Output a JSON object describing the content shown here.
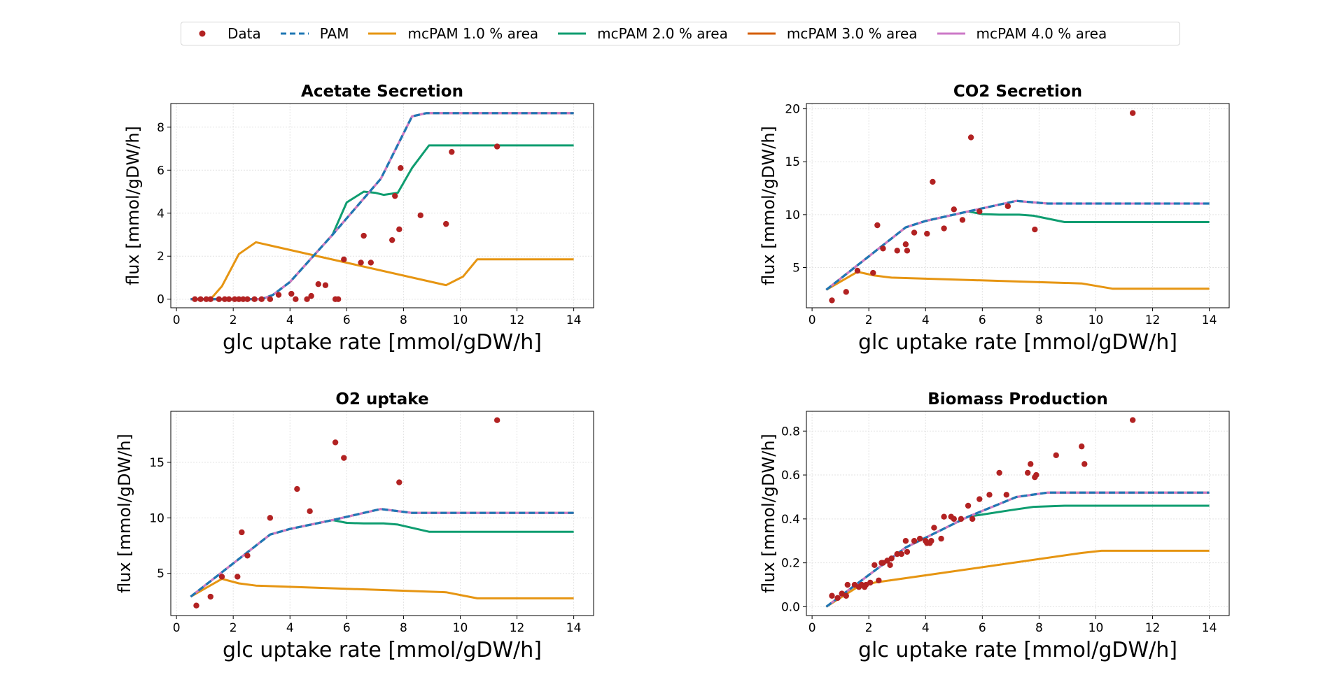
{
  "legend": [
    {
      "label": "Data",
      "kind": "marker",
      "color": "#b22222"
    },
    {
      "label": "PAM",
      "kind": "dashed",
      "color": "#1f77b4"
    },
    {
      "label": "mcPAM 1.0 % area",
      "kind": "line",
      "color": "#e69512"
    },
    {
      "label": "mcPAM 2.0 % area",
      "kind": "line",
      "color": "#0f9d70"
    },
    {
      "label": "mcPAM 3.0 % area",
      "kind": "line",
      "color": "#d55e00"
    },
    {
      "label": "mcPAM 4.0 % area",
      "kind": "line",
      "color": "#cc79c7"
    }
  ],
  "chart_data": [
    {
      "type": "line",
      "title": "Acetate Secretion",
      "xlabel": "glc uptake rate [mmol/gDW/h]",
      "ylabel": "flux [mmol/gDW/h]",
      "xlim": [
        -0.2,
        14.7
      ],
      "ylim": [
        -0.4,
        9.1
      ],
      "xticks": [
        0,
        2,
        4,
        6,
        8,
        10,
        12,
        14
      ],
      "yticks": [
        0,
        2,
        4,
        6,
        8
      ],
      "scatter": {
        "name": "Data",
        "x": [
          0.65,
          0.85,
          1.05,
          1.2,
          1.5,
          1.7,
          1.85,
          2.05,
          2.2,
          2.35,
          2.5,
          2.75,
          3.0,
          3.3,
          3.6,
          4.05,
          4.2,
          4.6,
          4.75,
          5.0,
          5.25,
          5.6,
          5.7,
          5.9,
          6.5,
          6.6,
          6.85,
          7.6,
          7.7,
          7.85,
          7.9,
          8.6,
          9.5,
          9.7,
          11.3
        ],
        "y": [
          0,
          0,
          0,
          0,
          0,
          0,
          0,
          0,
          0,
          0,
          0,
          0,
          0,
          0,
          0.2,
          0.25,
          0,
          0,
          0.15,
          0.7,
          0.65,
          0,
          0,
          1.85,
          1.7,
          2.95,
          1.7,
          2.75,
          4.8,
          3.25,
          6.1,
          3.9,
          3.5,
          6.85,
          7.1
        ]
      },
      "series": [
        {
          "name": "PAM",
          "x": [
            0.5,
            3.0,
            3.4,
            4.0,
            5.5,
            7.2,
            8.3,
            8.8,
            14.0
          ],
          "y": [
            0,
            0,
            0.2,
            0.8,
            3.0,
            5.6,
            8.5,
            8.65,
            8.65
          ]
        },
        {
          "name": "mcPAM 1.0 % area",
          "x": [
            0.5,
            1.2,
            1.6,
            2.2,
            2.8,
            9.5,
            10.1,
            10.6,
            14.0
          ],
          "y": [
            0,
            0,
            0.6,
            2.1,
            2.65,
            0.65,
            1.05,
            1.85,
            1.85
          ]
        },
        {
          "name": "mcPAM 2.0 % area",
          "x": [
            0.5,
            3.0,
            3.4,
            4.0,
            5.5,
            6.0,
            6.6,
            7.0,
            7.3,
            7.8,
            8.3,
            8.9,
            14.0
          ],
          "y": [
            0,
            0,
            0.2,
            0.8,
            3.0,
            4.5,
            5.0,
            4.95,
            4.85,
            4.95,
            6.1,
            7.15,
            7.15
          ]
        },
        {
          "name": "mcPAM 3.0 % area",
          "x": [
            0.5,
            3.0,
            3.4,
            4.0,
            5.5,
            7.2,
            8.3,
            8.8,
            14.0
          ],
          "y": [
            0,
            0,
            0.2,
            0.8,
            3.0,
            5.6,
            8.5,
            8.65,
            8.65
          ]
        },
        {
          "name": "mcPAM 4.0 % area",
          "x": [
            0.5,
            3.0,
            3.4,
            4.0,
            5.5,
            7.2,
            8.3,
            8.8,
            14.0
          ],
          "y": [
            0,
            0,
            0.2,
            0.8,
            3.0,
            5.6,
            8.5,
            8.65,
            8.65
          ]
        }
      ]
    },
    {
      "type": "line",
      "title": "CO2 Secretion",
      "xlabel": "glc uptake rate [mmol/gDW/h]",
      "ylabel": "flux [mmol/gDW/h]",
      "xlim": [
        -0.2,
        14.7
      ],
      "ylim": [
        1.2,
        20.5
      ],
      "xticks": [
        0,
        2,
        4,
        6,
        8,
        10,
        12,
        14
      ],
      "yticks": [
        5,
        10,
        15,
        20
      ],
      "scatter": {
        "name": "Data",
        "x": [
          0.7,
          1.2,
          1.6,
          2.15,
          2.3,
          2.5,
          3.0,
          3.3,
          3.35,
          3.6,
          4.05,
          4.25,
          4.65,
          5.0,
          5.3,
          5.6,
          5.9,
          6.9,
          7.85,
          11.3
        ],
        "y": [
          1.9,
          2.7,
          4.7,
          4.5,
          9.0,
          6.8,
          6.6,
          7.2,
          6.6,
          8.3,
          8.2,
          13.1,
          8.7,
          10.5,
          9.5,
          17.3,
          10.3,
          10.8,
          8.6,
          19.6
        ]
      },
      "series": [
        {
          "name": "PAM",
          "x": [
            0.5,
            3.3,
            4.0,
            5.5,
            7.2,
            8.3,
            14.0
          ],
          "y": [
            2.9,
            8.8,
            9.4,
            10.3,
            11.3,
            11.05,
            11.05
          ]
        },
        {
          "name": "mcPAM 1.0 % area",
          "x": [
            0.5,
            1.6,
            2.2,
            2.8,
            9.5,
            10.6,
            14.0
          ],
          "y": [
            2.9,
            4.6,
            4.25,
            4.05,
            3.5,
            3.0,
            3.0
          ]
        },
        {
          "name": "mcPAM 2.0 % area",
          "x": [
            0.5,
            3.3,
            4.0,
            5.5,
            6.0,
            6.6,
            7.3,
            7.8,
            8.9,
            14.0
          ],
          "y": [
            2.9,
            8.8,
            9.4,
            10.3,
            10.05,
            10.0,
            10.0,
            9.9,
            9.3,
            9.3
          ]
        },
        {
          "name": "mcPAM 3.0 % area",
          "x": [
            0.5,
            3.3,
            4.0,
            5.5,
            7.2,
            8.3,
            14.0
          ],
          "y": [
            2.9,
            8.8,
            9.4,
            10.3,
            11.3,
            11.05,
            11.05
          ]
        },
        {
          "name": "mcPAM 4.0 % area",
          "x": [
            0.5,
            3.3,
            4.0,
            5.5,
            7.2,
            8.3,
            14.0
          ],
          "y": [
            2.9,
            8.8,
            9.4,
            10.3,
            11.3,
            11.05,
            11.05
          ]
        }
      ]
    },
    {
      "type": "line",
      "title": "O2 uptake",
      "xlabel": "glc uptake rate [mmol/gDW/h]",
      "ylabel": "flux [mmol/gDW/h]",
      "xlim": [
        -0.2,
        14.7
      ],
      "ylim": [
        1.2,
        19.6
      ],
      "xticks": [
        0,
        2,
        4,
        6,
        8,
        10,
        12,
        14
      ],
      "yticks": [
        5,
        10,
        15
      ],
      "scatter": {
        "name": "Data",
        "x": [
          0.7,
          1.2,
          1.6,
          2.15,
          2.3,
          2.5,
          3.3,
          4.25,
          4.7,
          5.6,
          5.9,
          7.85,
          11.3
        ],
        "y": [
          2.1,
          2.9,
          4.7,
          4.7,
          8.7,
          6.6,
          10.0,
          12.6,
          10.6,
          16.8,
          15.4,
          13.2,
          18.8
        ]
      },
      "series": [
        {
          "name": "PAM",
          "x": [
            0.5,
            3.3,
            4.0,
            5.5,
            7.2,
            8.3,
            14.0
          ],
          "y": [
            2.9,
            8.5,
            9.0,
            9.8,
            10.8,
            10.45,
            10.45
          ]
        },
        {
          "name": "mcPAM 1.0 % area",
          "x": [
            0.5,
            1.6,
            2.2,
            2.8,
            9.5,
            10.6,
            14.0
          ],
          "y": [
            2.9,
            4.5,
            4.1,
            3.9,
            3.3,
            2.75,
            2.75
          ]
        },
        {
          "name": "mcPAM 2.0 % area",
          "x": [
            0.5,
            3.3,
            4.0,
            5.5,
            6.0,
            6.6,
            7.3,
            7.8,
            8.9,
            14.0
          ],
          "y": [
            2.9,
            8.5,
            9.0,
            9.8,
            9.55,
            9.5,
            9.5,
            9.4,
            8.75,
            8.75
          ]
        },
        {
          "name": "mcPAM 3.0 % area",
          "x": [
            0.5,
            3.3,
            4.0,
            5.5,
            7.2,
            8.3,
            14.0
          ],
          "y": [
            2.9,
            8.5,
            9.0,
            9.8,
            10.8,
            10.45,
            10.45
          ]
        },
        {
          "name": "mcPAM 4.0 % area",
          "x": [
            0.5,
            3.3,
            4.0,
            5.5,
            7.2,
            8.3,
            14.0
          ],
          "y": [
            2.9,
            8.5,
            9.0,
            9.8,
            10.8,
            10.45,
            10.45
          ]
        }
      ]
    },
    {
      "type": "line",
      "title": "Biomass Production",
      "xlabel": "glc uptake rate [mmol/gDW/h]",
      "ylabel": "flux [mmol/gDW/h]",
      "xlim": [
        -0.2,
        14.7
      ],
      "ylim": [
        -0.04,
        0.89
      ],
      "xticks": [
        0,
        2,
        4,
        6,
        8,
        10,
        12,
        14
      ],
      "yticks": [
        0.0,
        0.2,
        0.4,
        0.6,
        0.8
      ],
      "scatter": {
        "name": "Data",
        "x": [
          0.7,
          0.9,
          1.05,
          1.2,
          1.25,
          1.5,
          1.65,
          1.75,
          1.85,
          1.9,
          2.05,
          2.2,
          2.35,
          2.45,
          2.5,
          2.65,
          2.75,
          2.8,
          3.0,
          3.15,
          3.3,
          3.35,
          3.6,
          3.8,
          4.0,
          4.05,
          4.15,
          4.2,
          4.3,
          4.55,
          4.65,
          4.9,
          5.0,
          5.25,
          5.5,
          5.65,
          5.9,
          6.25,
          6.6,
          6.85,
          7.6,
          7.7,
          7.85,
          7.9,
          8.6,
          9.5,
          9.6,
          11.3
        ],
        "y": [
          0.05,
          0.04,
          0.06,
          0.05,
          0.1,
          0.1,
          0.09,
          0.1,
          0.09,
          0.1,
          0.11,
          0.19,
          0.12,
          0.2,
          0.2,
          0.21,
          0.19,
          0.22,
          0.24,
          0.24,
          0.3,
          0.25,
          0.3,
          0.31,
          0.3,
          0.29,
          0.29,
          0.3,
          0.36,
          0.31,
          0.41,
          0.41,
          0.4,
          0.4,
          0.46,
          0.4,
          0.49,
          0.51,
          0.61,
          0.51,
          0.61,
          0.65,
          0.59,
          0.6,
          0.69,
          0.73,
          0.65,
          0.85
        ]
      },
      "series": [
        {
          "name": "PAM",
          "x": [
            0.5,
            3.3,
            5.5,
            7.2,
            8.3,
            14.0
          ],
          "y": [
            0.0,
            0.27,
            0.41,
            0.5,
            0.52,
            0.52
          ]
        },
        {
          "name": "mcPAM 1.0 % area",
          "x": [
            0.5,
            1.6,
            2.2,
            9.5,
            10.2,
            14.0
          ],
          "y": [
            0.0,
            0.09,
            0.11,
            0.245,
            0.255,
            0.255
          ]
        },
        {
          "name": "mcPAM 2.0 % area",
          "x": [
            0.5,
            3.3,
            5.5,
            6.0,
            7.0,
            7.8,
            8.9,
            14.0
          ],
          "y": [
            0.0,
            0.27,
            0.41,
            0.42,
            0.44,
            0.455,
            0.46,
            0.46
          ]
        },
        {
          "name": "mcPAM 3.0 % area",
          "x": [
            0.5,
            3.3,
            5.5,
            7.2,
            8.3,
            14.0
          ],
          "y": [
            0.0,
            0.27,
            0.41,
            0.5,
            0.52,
            0.52
          ]
        },
        {
          "name": "mcPAM 4.0 % area",
          "x": [
            0.5,
            3.3,
            5.5,
            7.2,
            8.3,
            14.0
          ],
          "y": [
            0.0,
            0.27,
            0.41,
            0.5,
            0.52,
            0.52
          ]
        }
      ]
    }
  ]
}
